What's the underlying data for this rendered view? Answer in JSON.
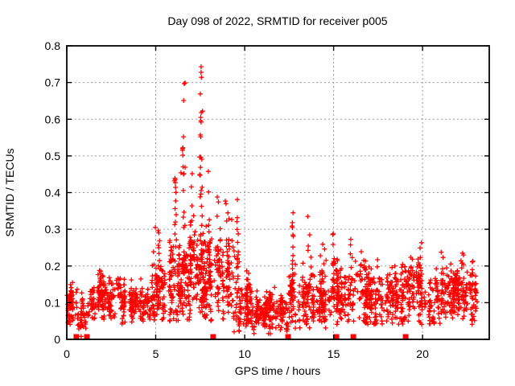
{
  "window": {
    "background": "#ffffff"
  },
  "chart_data": {
    "type": "scatter",
    "title": "Day 098 of 2022, SRMTID for receiver p005",
    "xlabel": "GPS time / hours",
    "ylabel": "SRMTID / TECUs",
    "xlim": [
      0,
      23.75
    ],
    "ylim": [
      0,
      0.8
    ],
    "xticks": [
      0,
      5,
      10,
      15,
      20
    ],
    "xtick_labels": [
      "0",
      "5",
      "10",
      "15",
      "20"
    ],
    "yticks": [
      0,
      0.1,
      0.2,
      0.3,
      0.4,
      0.5,
      0.6,
      0.7,
      0.8
    ],
    "ytick_labels": [
      "0",
      "0.1",
      "0.2",
      "0.3",
      "0.4",
      "0.5",
      "0.6",
      "0.7",
      "0.8"
    ],
    "grid": true,
    "legend": "none",
    "colors": {
      "marker": "#ff0000",
      "grid": "#9b9b9b",
      "border": "#000000",
      "background": "#ffffff"
    },
    "series": [
      {
        "name": "SRMTID",
        "marker": "plus",
        "marker_size": 7,
        "color": "#ff0000"
      }
    ],
    "density_segments": [
      {
        "x0": 0.02,
        "x1": 0.35,
        "n": 55,
        "base": 0.09,
        "sd": 0.028,
        "min": 0.035,
        "max": 0.16
      },
      {
        "x0": 0.35,
        "x1": 1.45,
        "n": 65,
        "base": 0.075,
        "sd": 0.028,
        "min": 0.02,
        "max": 0.14
      },
      {
        "x0": 1.45,
        "x1": 2.65,
        "n": 120,
        "base": 0.115,
        "sd": 0.032,
        "min": 0.05,
        "max": 0.195
      },
      {
        "x0": 2.65,
        "x1": 4.6,
        "n": 170,
        "base": 0.095,
        "sd": 0.028,
        "min": 0.04,
        "max": 0.17
      },
      {
        "x0": 4.6,
        "x1": 5.6,
        "n": 100,
        "base": 0.13,
        "sd": 0.045,
        "min": 0.05,
        "max": 0.29
      },
      {
        "x0": 5.6,
        "x1": 9.4,
        "n": 430,
        "base": 0.185,
        "sd": 0.065,
        "min": 0.05,
        "max": 0.42
      },
      {
        "x0": 9.4,
        "x1": 10.3,
        "n": 100,
        "base": 0.1,
        "sd": 0.05,
        "min": 0.02,
        "max": 0.29
      },
      {
        "x0": 10.3,
        "x1": 12.45,
        "n": 230,
        "base": 0.07,
        "sd": 0.028,
        "min": 0.015,
        "max": 0.15
      },
      {
        "x0": 12.45,
        "x1": 14.6,
        "n": 210,
        "base": 0.115,
        "sd": 0.045,
        "min": 0.03,
        "max": 0.27
      },
      {
        "x0": 14.6,
        "x1": 17.5,
        "n": 270,
        "base": 0.125,
        "sd": 0.045,
        "min": 0.04,
        "max": 0.25
      },
      {
        "x0": 17.5,
        "x1": 20.8,
        "n": 280,
        "base": 0.125,
        "sd": 0.042,
        "min": 0.04,
        "max": 0.24
      },
      {
        "x0": 20.8,
        "x1": 23.05,
        "n": 240,
        "base": 0.12,
        "sd": 0.038,
        "min": 0.04,
        "max": 0.22
      }
    ],
    "streak_columns": [
      {
        "x": 2.0,
        "y0": 0.08,
        "y1": 0.195,
        "n": 10
      },
      {
        "x": 5.2,
        "y0": 0.08,
        "y1": 0.3,
        "n": 14
      },
      {
        "x": 6.1,
        "y0": 0.15,
        "y1": 0.44,
        "n": 16
      },
      {
        "x": 6.55,
        "y0": 0.18,
        "y1": 0.52,
        "n": 20
      },
      {
        "x": 7.0,
        "y0": 0.15,
        "y1": 0.46,
        "n": 14
      },
      {
        "x": 7.55,
        "y0": 0.18,
        "y1": 0.5,
        "n": 20
      },
      {
        "x": 8.0,
        "y0": 0.12,
        "y1": 0.46,
        "n": 16
      },
      {
        "x": 8.5,
        "y0": 0.1,
        "y1": 0.39,
        "n": 14
      },
      {
        "x": 9.0,
        "y0": 0.1,
        "y1": 0.38,
        "n": 12
      },
      {
        "x": 9.6,
        "y0": 0.05,
        "y1": 0.38,
        "n": 10
      },
      {
        "x": 12.7,
        "y0": 0.08,
        "y1": 0.33,
        "n": 14
      },
      {
        "x": 13.6,
        "y0": 0.08,
        "y1": 0.31,
        "n": 10
      },
      {
        "x": 14.4,
        "y0": 0.08,
        "y1": 0.27,
        "n": 8
      },
      {
        "x": 15.0,
        "y0": 0.08,
        "y1": 0.3,
        "n": 10
      },
      {
        "x": 16.0,
        "y0": 0.08,
        "y1": 0.29,
        "n": 8
      },
      {
        "x": 16.75,
        "y0": 0.08,
        "y1": 0.27,
        "n": 8
      },
      {
        "x": 19.9,
        "y0": 0.08,
        "y1": 0.3,
        "n": 10
      },
      {
        "x": 20.4,
        "y0": 0.08,
        "y1": 0.27,
        "n": 8
      },
      {
        "x": 21.1,
        "y0": 0.07,
        "y1": 0.25,
        "n": 8
      },
      {
        "x": 22.2,
        "y0": 0.07,
        "y1": 0.26,
        "n": 8
      }
    ],
    "notable_points": [
      [
        7.55,
        0.743
      ],
      [
        7.55,
        0.728
      ],
      [
        7.57,
        0.714
      ],
      [
        7.51,
        0.669
      ],
      [
        7.63,
        0.622
      ],
      [
        7.56,
        0.618
      ],
      [
        7.53,
        0.605
      ],
      [
        7.53,
        0.596
      ],
      [
        7.55,
        0.592
      ],
      [
        7.51,
        0.557
      ],
      [
        7.53,
        0.552
      ],
      [
        7.47,
        0.497
      ],
      [
        7.47,
        0.449
      ],
      [
        6.65,
        0.699
      ],
      [
        6.6,
        0.697
      ],
      [
        6.57,
        0.651
      ],
      [
        6.56,
        0.552
      ],
      [
        6.53,
        0.522
      ],
      [
        6.51,
        0.52
      ],
      [
        6.65,
        0.469
      ],
      [
        6.42,
        0.454
      ],
      [
        6.06,
        0.432
      ],
      [
        4.98,
        0.305
      ],
      [
        8.46,
        0.388
      ],
      [
        8.91,
        0.377
      ],
      [
        9.59,
        0.381
      ],
      [
        12.72,
        0.345
      ],
      [
        13.55,
        0.335
      ],
      [
        22.3,
        0.23
      ]
    ],
    "zero_axis_squares_x": [
      0.54,
      1.13,
      8.23,
      12.44,
      15.16,
      16.11,
      19.05
    ],
    "zero_axis_plus_x": [
      0.81
    ]
  }
}
